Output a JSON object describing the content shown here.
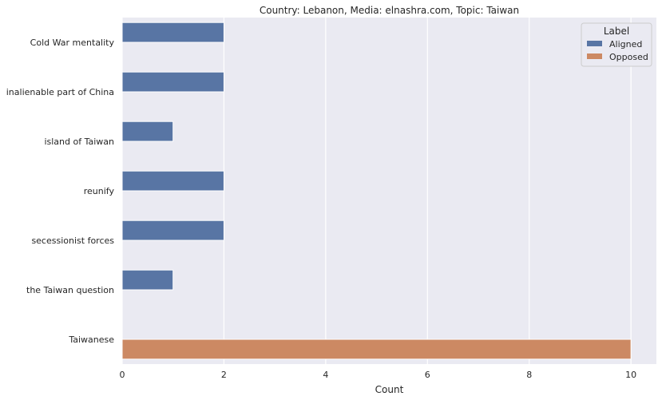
{
  "chart_data": {
    "type": "bar",
    "orientation": "horizontal",
    "title": "Country: Lebanon, Media: elnashra.com, Topic: Taiwan",
    "xlabel": "Count",
    "ylabel": "",
    "xlim": [
      0,
      10.5
    ],
    "xticks": [
      "0",
      "2",
      "4",
      "6",
      "8",
      "10"
    ],
    "grid": true,
    "categories": [
      "Cold War mentality",
      "inalienable part of China",
      "island of Taiwan",
      "reunify",
      "secessionist forces",
      "the Taiwan question",
      "Taiwanese"
    ],
    "series": [
      {
        "name": "Aligned",
        "color": "#5875a4",
        "values": [
          2,
          2,
          1,
          2,
          2,
          1,
          0
        ]
      },
      {
        "name": "Opposed",
        "color": "#cc8963",
        "values": [
          0,
          0,
          0,
          0,
          0,
          0,
          10
        ]
      }
    ],
    "legend": {
      "title": "Label",
      "placement": "top-right",
      "entries": [
        "Aligned",
        "Opposed"
      ]
    }
  }
}
